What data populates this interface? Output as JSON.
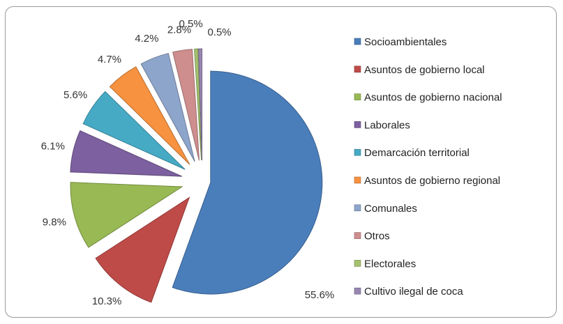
{
  "chart_data": {
    "type": "pie",
    "legend_position": "right",
    "exploded": true,
    "series": [
      {
        "label": "Socioambientales",
        "value": 55.6,
        "value_label": "55.6%",
        "color": "#4A7EBB"
      },
      {
        "label": "Asuntos de gobierno local",
        "value": 10.3,
        "value_label": "10.3%",
        "color": "#BE4B48"
      },
      {
        "label": "Asuntos de gobierno nacional",
        "value": 9.8,
        "value_label": "9.8%",
        "color": "#98B954"
      },
      {
        "label": "Laborales",
        "value": 6.1,
        "value_label": "6.1%",
        "color": "#7D60A0"
      },
      {
        "label": "Demarcación territorial",
        "value": 5.6,
        "value_label": "5.6%",
        "color": "#46AAC5"
      },
      {
        "label": "Asuntos de gobierno regional",
        "value": 4.7,
        "value_label": "4.7%",
        "color": "#F69240"
      },
      {
        "label": "Comunales",
        "value": 4.2,
        "value_label": "4.2%",
        "color": "#8EA5CB"
      },
      {
        "label": "Otros",
        "value": 2.8,
        "value_label": "2.8%",
        "color": "#CE8E8D"
      },
      {
        "label": "Electorales",
        "value": 0.5,
        "value_label": "0.5%",
        "color": "#A5C26F"
      },
      {
        "label": "Cultivo ilegal de coca",
        "value": 0.5,
        "value_label": "0.5%",
        "color": "#9887B2"
      }
    ]
  }
}
